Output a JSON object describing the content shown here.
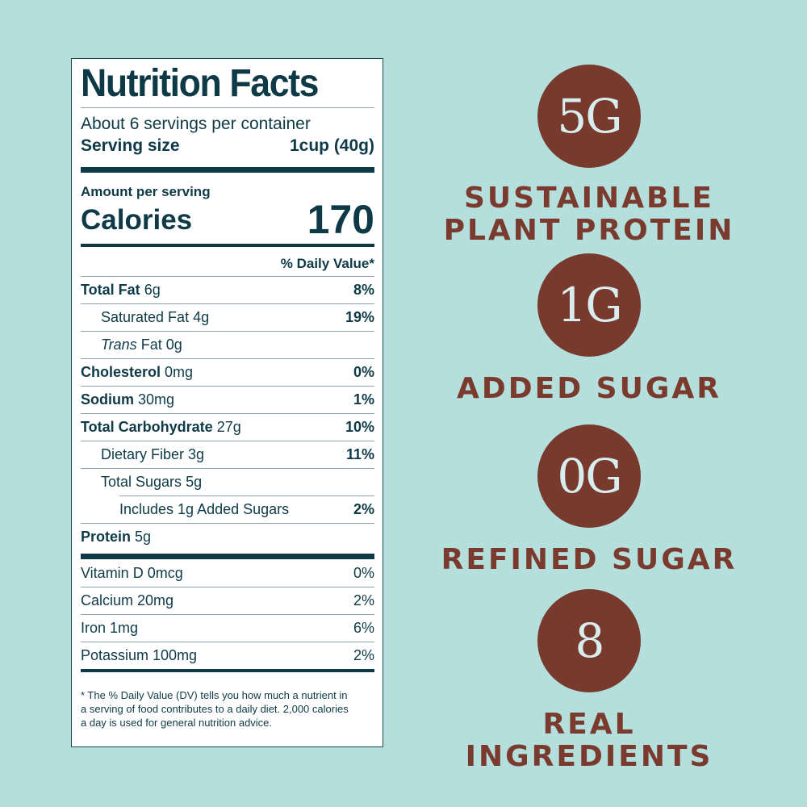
{
  "nutrition": {
    "title": "Nutrition Facts",
    "servings": "About 6 servings per container",
    "serving_size_label": "Serving size",
    "serving_size_value": "1cup (40g)",
    "amount_per_serving": "Amount per serving",
    "calories_label": "Calories",
    "calories_value": "170",
    "dv_header": "% Daily Value*",
    "rows": [
      {
        "name": "Total Fat",
        "amount": "6g",
        "pct": "8%"
      },
      {
        "name": "Saturated Fat",
        "amount": "4g",
        "pct": "19%"
      },
      {
        "name": "Trans",
        "name_rest": "Fat",
        "amount": "0g",
        "pct": ""
      },
      {
        "name": "Cholesterol",
        "amount": "0mg",
        "pct": "0%"
      },
      {
        "name": "Sodium",
        "amount": "30mg",
        "pct": "1%"
      },
      {
        "name": "Total Carbohydrate",
        "amount": "27g",
        "pct": "10%"
      },
      {
        "name": "Dietary Fiber",
        "amount": "3g",
        "pct": "11%"
      },
      {
        "name": "Total Sugars",
        "amount": "5g",
        "pct": ""
      },
      {
        "name": "Includes 1g Added Sugars",
        "amount": "",
        "pct": "2%"
      },
      {
        "name": "Protein",
        "amount": "5g",
        "pct": ""
      }
    ],
    "vitamins": [
      {
        "name": "Vitamin D 0mcg",
        "pct": "0%"
      },
      {
        "name": "Calcium 20mg",
        "pct": "2%"
      },
      {
        "name": "Iron 1mg",
        "pct": "6%"
      },
      {
        "name": "Potassium 100mg",
        "pct": "2%"
      }
    ],
    "footnote_line1": "* The % Daily Value (DV) tells you how much a nutrient in",
    "footnote_line2": "a serving of food contributes to a daily diet. 2,000 calories",
    "footnote_line3": "a day is used for general nutrition advice."
  },
  "stats": [
    {
      "value": "5G",
      "caption_line1": "Sustainable",
      "caption_line2": "Plant Protein"
    },
    {
      "value": "1G",
      "caption_line1": "Added Sugar",
      "caption_line2": ""
    },
    {
      "value": "0G",
      "caption_line1": "Refined Sugar",
      "caption_line2": ""
    },
    {
      "value": "8",
      "caption_line1": "Real Ingredients",
      "caption_line2": ""
    }
  ],
  "colors": {
    "background": "#b5dfdd",
    "brown": "#793a2e",
    "label_text": "#0e3a47"
  }
}
